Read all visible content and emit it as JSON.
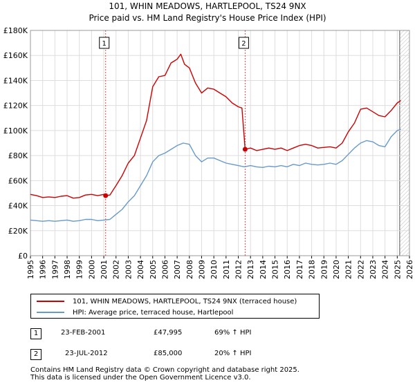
{
  "title_line1": "101, WHIN MEADOWS, HARTLEPOOL, TS24 9NX",
  "title_line2": "Price paid vs. HM Land Registry's House Price Index (HPI)",
  "colors": {
    "price_line": "#cc0000",
    "hpi_line": "#6699cc",
    "marker_line": "#cc0000",
    "future_hatch": "#bbbbbb",
    "grid": "#dddddd"
  },
  "chart_data": {
    "type": "line",
    "title": "101, WHIN MEADOWS, HARTLEPOOL, TS24 9NX",
    "subtitle": "Price paid vs. HM Land Registry's House Price Index (HPI)",
    "xlabel": "",
    "ylabel": "",
    "xlim": [
      1995,
      2026
    ],
    "ylim": [
      0,
      180000
    ],
    "grid": true,
    "y_ticks": [
      {
        "value": 0,
        "label": "£0"
      },
      {
        "value": 20000,
        "label": "£20K"
      },
      {
        "value": 40000,
        "label": "£40K"
      },
      {
        "value": 60000,
        "label": "£60K"
      },
      {
        "value": 80000,
        "label": "£80K"
      },
      {
        "value": 100000,
        "label": "£100K"
      },
      {
        "value": 120000,
        "label": "£120K"
      },
      {
        "value": 140000,
        "label": "£140K"
      },
      {
        "value": 160000,
        "label": "£160K"
      },
      {
        "value": 180000,
        "label": "£180K"
      }
    ],
    "x_ticks": [
      "1995",
      "1996",
      "1997",
      "1998",
      "1999",
      "2000",
      "2001",
      "2002",
      "2003",
      "2004",
      "2005",
      "2006",
      "2007",
      "2008",
      "2009",
      "2010",
      "2011",
      "2012",
      "2013",
      "2014",
      "2015",
      "2016",
      "2017",
      "2018",
      "2019",
      "2020",
      "2021",
      "2022",
      "2023",
      "2024",
      "2025",
      "2026"
    ],
    "hatch_from": 2025.2,
    "series": [
      {
        "name": "101, WHIN MEADOWS, HARTLEPOOL, TS24 9NX (terraced house)",
        "color": "#cc0000",
        "x": [
          1995.0,
          1995.5,
          1996.0,
          1996.5,
          1997.0,
          1997.5,
          1998.0,
          1998.5,
          1999.0,
          1999.5,
          2000.0,
          2000.5,
          2001.0,
          2001.15,
          2001.5,
          2002.0,
          2002.5,
          2003.0,
          2003.5,
          2004.0,
          2004.5,
          2005.0,
          2005.5,
          2006.0,
          2006.5,
          2007.0,
          2007.3,
          2007.6,
          2008.0,
          2008.5,
          2009.0,
          2009.5,
          2010.0,
          2010.5,
          2011.0,
          2011.5,
          2012.0,
          2012.3,
          2012.56,
          2013.0,
          2013.5,
          2014.0,
          2014.5,
          2015.0,
          2015.5,
          2016.0,
          2016.5,
          2017.0,
          2017.5,
          2018.0,
          2018.5,
          2019.0,
          2019.5,
          2020.0,
          2020.5,
          2021.0,
          2021.5,
          2022.0,
          2022.5,
          2023.0,
          2023.5,
          2024.0,
          2024.5,
          2025.0,
          2025.3
        ],
        "y": [
          49000,
          48000,
          46500,
          47000,
          46500,
          47500,
          48000,
          46000,
          46500,
          48500,
          49000,
          48000,
          49000,
          47995,
          48500,
          56000,
          64000,
          74000,
          80000,
          94000,
          108000,
          135000,
          143000,
          144000,
          154000,
          157000,
          161000,
          153000,
          150000,
          138000,
          130000,
          134000,
          133000,
          130000,
          127000,
          122000,
          119000,
          118000,
          85000,
          86000,
          84000,
          85000,
          86000,
          85000,
          86000,
          84000,
          86000,
          88000,
          89000,
          88000,
          86000,
          86500,
          87000,
          86000,
          90000,
          99000,
          106000,
          117000,
          118000,
          115000,
          112000,
          111000,
          116000,
          122000,
          124000
        ]
      },
      {
        "name": "HPI: Average price, terraced house, Hartlepool",
        "color": "#6699cc",
        "x": [
          1995.0,
          1995.5,
          1996.0,
          1996.5,
          1997.0,
          1997.5,
          1998.0,
          1998.5,
          1999.0,
          1999.5,
          2000.0,
          2000.5,
          2001.0,
          2001.5,
          2002.0,
          2002.5,
          2003.0,
          2003.5,
          2004.0,
          2004.5,
          2005.0,
          2005.5,
          2006.0,
          2006.5,
          2007.0,
          2007.5,
          2008.0,
          2008.5,
          2009.0,
          2009.5,
          2010.0,
          2010.5,
          2011.0,
          2011.5,
          2012.0,
          2012.5,
          2013.0,
          2013.5,
          2014.0,
          2014.5,
          2015.0,
          2015.5,
          2016.0,
          2016.5,
          2017.0,
          2017.5,
          2018.0,
          2018.5,
          2019.0,
          2019.5,
          2020.0,
          2020.5,
          2021.0,
          2021.5,
          2022.0,
          2022.5,
          2023.0,
          2023.5,
          2024.0,
          2024.5,
          2025.0,
          2025.3
        ],
        "y": [
          28500,
          28000,
          27500,
          28000,
          27500,
          28000,
          28500,
          27500,
          28000,
          29000,
          29000,
          28000,
          28500,
          29000,
          33000,
          37000,
          43000,
          48000,
          56000,
          64000,
          75000,
          80000,
          82000,
          85000,
          88000,
          90000,
          89000,
          80000,
          75000,
          78000,
          78000,
          76000,
          74000,
          73000,
          72000,
          71000,
          72000,
          71000,
          70500,
          71500,
          71000,
          72000,
          71000,
          73000,
          72000,
          74000,
          73000,
          72500,
          73000,
          74000,
          73000,
          76000,
          81000,
          86000,
          90000,
          92000,
          91000,
          88000,
          87000,
          95000,
          100000,
          101000
        ]
      }
    ],
    "markers": [
      {
        "label": "1",
        "x": 2001.15,
        "y": 47995
      },
      {
        "label": "2",
        "x": 2012.56,
        "y": 85000
      }
    ]
  },
  "legend": {
    "price_label": "101, WHIN MEADOWS, HARTLEPOOL, TS24 9NX (terraced house)",
    "hpi_label": "HPI: Average price, terraced house, Hartlepool"
  },
  "transactions": [
    {
      "num": "1",
      "date": "23-FEB-2001",
      "price": "£47,995",
      "hpi": "69% ↑ HPI"
    },
    {
      "num": "2",
      "date": "23-JUL-2012",
      "price": "£85,000",
      "hpi": "20% ↑ HPI"
    }
  ],
  "footer": {
    "line1": "Contains HM Land Registry data © Crown copyright and database right 2025.",
    "line2": "This data is licensed under the Open Government Licence v3.0."
  }
}
